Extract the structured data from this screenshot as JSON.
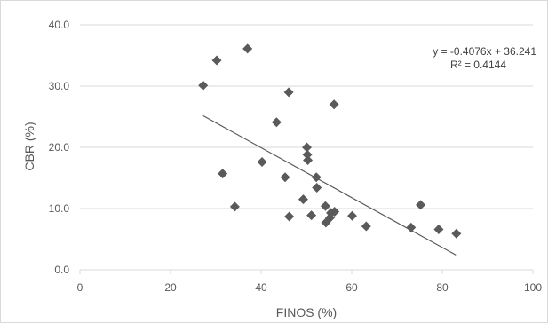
{
  "chart_data": {
    "type": "scatter",
    "title": "",
    "xlabel": "FINOS (%)",
    "ylabel": "CBR (%)",
    "xlim": [
      0,
      100
    ],
    "ylim": [
      0,
      40
    ],
    "x_ticks": [
      "0",
      "20",
      "40",
      "60",
      "80",
      "100"
    ],
    "y_ticks": [
      "0.0",
      "10.0",
      "20.0",
      "30.0",
      "40.0"
    ],
    "grid": "horizontal",
    "legend": "none",
    "marker": "diamond",
    "colors": {
      "marker": "#5a5a5a",
      "trendline": "#595959",
      "grid": "#d9d9d9",
      "border": "#d9d9d9",
      "text": "#595959"
    },
    "points": [
      {
        "x": 27.2,
        "y": 30.1
      },
      {
        "x": 30.2,
        "y": 34.2
      },
      {
        "x": 31.5,
        "y": 15.7
      },
      {
        "x": 34.2,
        "y": 10.3
      },
      {
        "x": 37.0,
        "y": 36.1
      },
      {
        "x": 40.2,
        "y": 17.6
      },
      {
        "x": 43.4,
        "y": 24.1
      },
      {
        "x": 45.3,
        "y": 15.1
      },
      {
        "x": 46.1,
        "y": 29.0
      },
      {
        "x": 46.2,
        "y": 8.7
      },
      {
        "x": 49.3,
        "y": 11.5
      },
      {
        "x": 50.1,
        "y": 20.0
      },
      {
        "x": 50.2,
        "y": 18.8
      },
      {
        "x": 50.3,
        "y": 17.9
      },
      {
        "x": 51.1,
        "y": 8.9
      },
      {
        "x": 52.2,
        "y": 15.1
      },
      {
        "x": 52.3,
        "y": 13.4
      },
      {
        "x": 54.2,
        "y": 10.4
      },
      {
        "x": 54.3,
        "y": 7.7
      },
      {
        "x": 55.2,
        "y": 8.5
      },
      {
        "x": 55.4,
        "y": 9.3
      },
      {
        "x": 56.1,
        "y": 27.0
      },
      {
        "x": 56.2,
        "y": 9.5
      },
      {
        "x": 60.1,
        "y": 8.8
      },
      {
        "x": 63.2,
        "y": 7.1
      },
      {
        "x": 73.1,
        "y": 6.9
      },
      {
        "x": 75.2,
        "y": 10.6
      },
      {
        "x": 79.2,
        "y": 6.6
      },
      {
        "x": 83.1,
        "y": 5.9
      }
    ],
    "trendline": {
      "slope": -0.4076,
      "intercept": 36.241,
      "x_range": [
        27,
        83
      ],
      "equation": "y = -0.4076x + 36.241",
      "r_squared": "R² = 0.4144"
    }
  }
}
